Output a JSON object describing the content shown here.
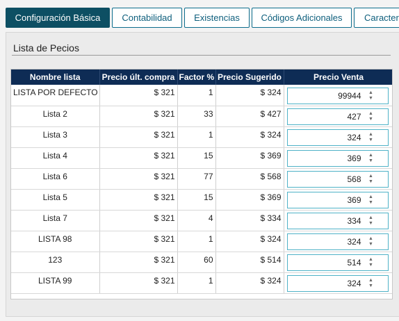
{
  "tabs": [
    {
      "label": "Configuración Básica",
      "active": true
    },
    {
      "label": "Contabilidad",
      "active": false
    },
    {
      "label": "Existencias",
      "active": false
    },
    {
      "label": "Códigos Adicionales",
      "active": false
    },
    {
      "label": "Caracterí",
      "active": false
    }
  ],
  "section_title": "Lista de Pecios",
  "table": {
    "headers": [
      "Nombre lista",
      "Precio últ. compra",
      "Factor %",
      "Precio Sugerido",
      "Precio Venta"
    ],
    "rows": [
      {
        "name": "LISTA POR DEFECTO",
        "last_price": "$ 321",
        "factor": "1",
        "suggested": "$ 324",
        "sale": "99944"
      },
      {
        "name": "Lista 2",
        "last_price": "$ 321",
        "factor": "33",
        "suggested": "$ 427",
        "sale": "427"
      },
      {
        "name": "Lista 3",
        "last_price": "$ 321",
        "factor": "1",
        "suggested": "$ 324",
        "sale": "324"
      },
      {
        "name": "Lista 4",
        "last_price": "$ 321",
        "factor": "15",
        "suggested": "$ 369",
        "sale": "369"
      },
      {
        "name": "Lista 6",
        "last_price": "$ 321",
        "factor": "77",
        "suggested": "$ 568",
        "sale": "568"
      },
      {
        "name": "Lista 5",
        "last_price": "$ 321",
        "factor": "15",
        "suggested": "$ 369",
        "sale": "369"
      },
      {
        "name": "Lista 7",
        "last_price": "$ 321",
        "factor": "4",
        "suggested": "$ 334",
        "sale": "334"
      },
      {
        "name": "LISTA 98",
        "last_price": "$ 321",
        "factor": "1",
        "suggested": "$ 324",
        "sale": "324"
      },
      {
        "name": "123",
        "last_price": "$ 321",
        "factor": "60",
        "suggested": "$ 514",
        "sale": "514"
      },
      {
        "name": "LISTA 99",
        "last_price": "$ 321",
        "factor": "1",
        "suggested": "$ 324",
        "sale": "324"
      }
    ]
  },
  "colors": {
    "header_bg": "#0e2c55",
    "active_tab_bg": "#0d4f63",
    "tab_border": "#0d6d8c",
    "input_border": "#4fb2c7"
  },
  "icons": {
    "spinner_up": "caret-up-icon",
    "spinner_down": "caret-down-icon"
  }
}
